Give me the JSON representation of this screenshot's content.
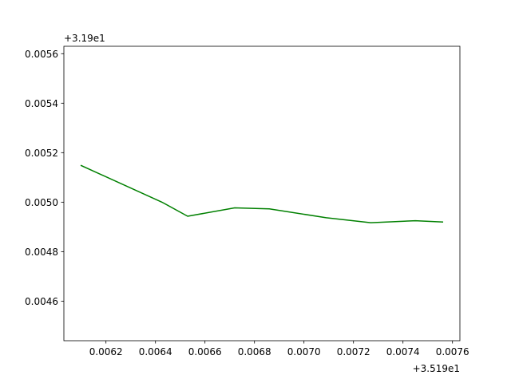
{
  "chart_data": {
    "type": "line",
    "title": "",
    "xlabel": "",
    "ylabel": "",
    "x_offset_text": "+3.519e1",
    "y_offset_text": "+3.19e1",
    "xlim": [
      0.00603,
      0.00763
    ],
    "ylim": [
      0.00444,
      0.00563
    ],
    "x_ticks": [
      {
        "value": 0.0062,
        "label": "0.0062"
      },
      {
        "value": 0.0064,
        "label": "0.0064"
      },
      {
        "value": 0.0066,
        "label": "0.0066"
      },
      {
        "value": 0.0068,
        "label": "0.0068"
      },
      {
        "value": 0.007,
        "label": "0.0070"
      },
      {
        "value": 0.0072,
        "label": "0.0072"
      },
      {
        "value": 0.0074,
        "label": "0.0074"
      },
      {
        "value": 0.0076,
        "label": "0.0076"
      }
    ],
    "y_ticks": [
      {
        "value": 0.0046,
        "label": "0.0046"
      },
      {
        "value": 0.0048,
        "label": "0.0048"
      },
      {
        "value": 0.005,
        "label": "0.0050"
      },
      {
        "value": 0.0052,
        "label": "0.0052"
      },
      {
        "value": 0.0054,
        "label": "0.0054"
      },
      {
        "value": 0.0056,
        "label": "0.0056"
      }
    ],
    "grid": false,
    "series": [
      {
        "color": "#008000",
        "x": [
          0.0061,
          0.00643,
          0.00653,
          0.00672,
          0.00686,
          0.00709,
          0.00727,
          0.00745,
          0.00756
        ],
        "y": [
          0.005148,
          0.004998,
          0.004943,
          0.004977,
          0.004973,
          0.004937,
          0.004917,
          0.004925,
          0.00492
        ]
      }
    ]
  }
}
